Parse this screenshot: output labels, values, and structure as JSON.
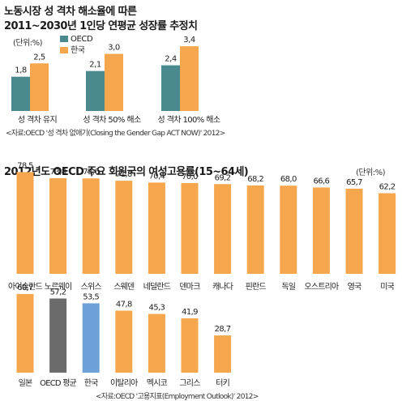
{
  "chart_data": [
    {
      "type": "bar",
      "title": "노동시장 성 격차 해소율에 따른",
      "subtitle": "2011~2030년 1인당 연평균 성장률 추정치",
      "unit": "(단위:%)",
      "categories": [
        "성 격차 유지",
        "성 격차 50% 해소",
        "성 격차 100% 해소"
      ],
      "series": [
        {
          "name": "OECD",
          "values": [
            1.8,
            2.1,
            2.4
          ],
          "labels": [
            "1,8",
            "2,1",
            "2,4"
          ]
        },
        {
          "name": "한국",
          "values": [
            2.5,
            3.0,
            3.4
          ],
          "labels": [
            "2,5",
            "3,0",
            "3,4"
          ]
        }
      ],
      "source": "자료:OECD '성 격차 없애기(Closing the Gender Gap ACT NOW)' 2012",
      "colors": {
        "OECD": "#4a8a8e",
        "한국": "#f6a64c"
      }
    },
    {
      "type": "bar",
      "title": "2012년도 OECD 주요 회원국의 여성고용률(15~64세)",
      "unit": "(단위:%)",
      "categories": [
        "아이슬란드",
        "노르웨이",
        "스위스",
        "스웨덴",
        "네덜란드",
        "덴마크",
        "캐나다",
        "핀란드",
        "독일",
        "오스트리아",
        "영국",
        "미국",
        "일본",
        "OECD 평균",
        "한국",
        "이탈리아",
        "멕시코",
        "그리스",
        "터키"
      ],
      "values": [
        78.5,
        73.8,
        73.6,
        71.8,
        70.4,
        70.0,
        69.2,
        68.2,
        68.0,
        66.6,
        65.7,
        62.2,
        60.7,
        57.2,
        53.5,
        47.8,
        45.3,
        41.9,
        28.7
      ],
      "labels": [
        "78,5",
        "73,8",
        "73,6",
        "71,8",
        "70,4",
        "70,0",
        "69,2",
        "68,2",
        "68,0",
        "66,6",
        "65,7",
        "62,2",
        "60,7",
        "57,2",
        "53,5",
        "47,8",
        "45,3",
        "41,9",
        "28,7"
      ],
      "source": "자료:OECD '고용지표(Employment Outlook)' 2012",
      "colors": {
        "default": "#f6a64c",
        "OECD 평균": "#6b6b6b",
        "한국": "#6d9fd8"
      }
    }
  ]
}
